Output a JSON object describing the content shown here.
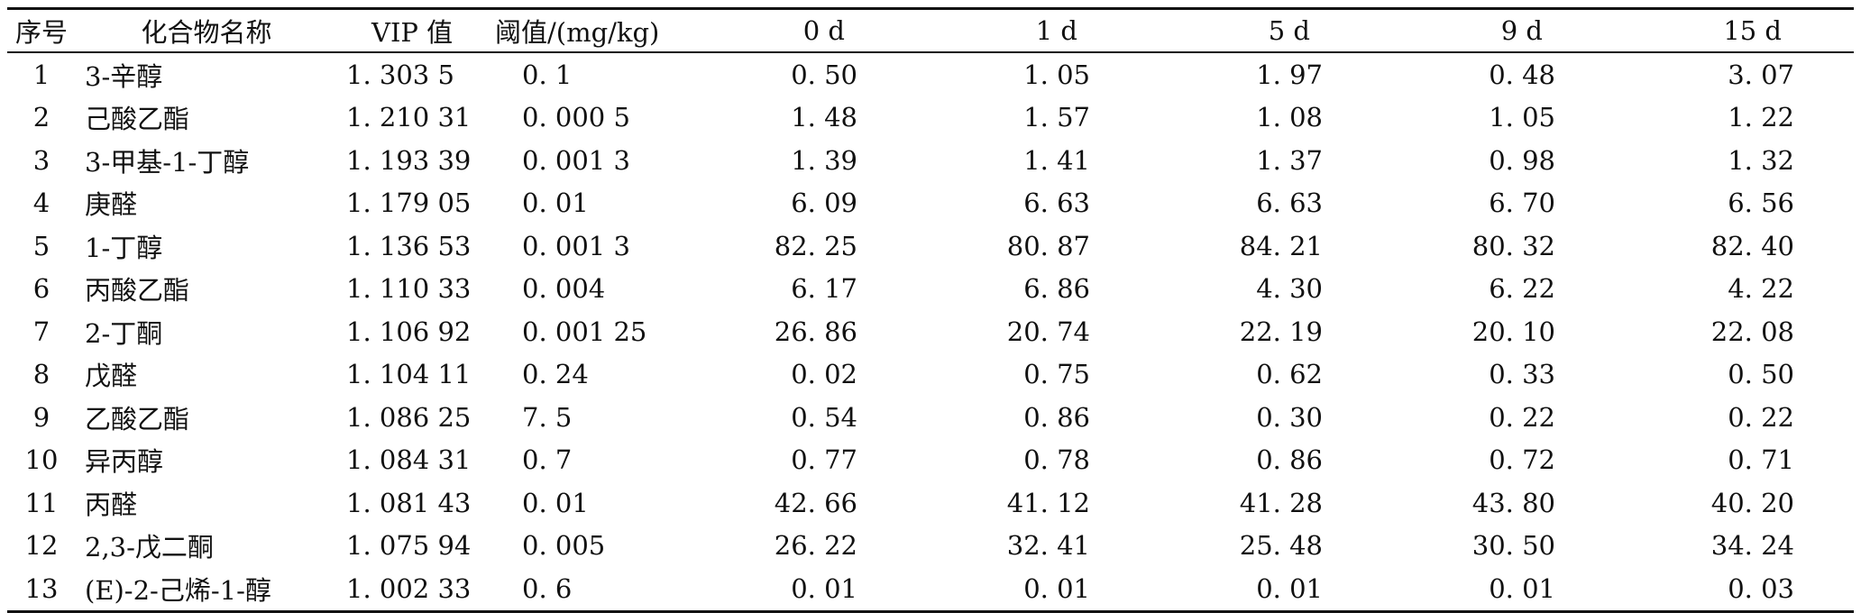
{
  "table": {
    "headers": [
      "序号",
      "化合物名称",
      "VIP 值",
      "阈值/(mg/kg)",
      "0 d",
      "1 d",
      "5 d",
      "9 d",
      "15 d"
    ],
    "rows": [
      [
        "1",
        "3-辛醇",
        "1. 303 5",
        "0. 1",
        "0. 50",
        "1. 05",
        "1. 97",
        "0. 48",
        "3. 07"
      ],
      [
        "2",
        "己酸乙酯",
        "1. 210 31",
        "0. 000 5",
        "1. 48",
        "1. 57",
        "1. 08",
        "1. 05",
        "1. 22"
      ],
      [
        "3",
        "3-甲基-1-丁醇",
        "1. 193 39",
        "0. 001 3",
        "1. 39",
        "1. 41",
        "1. 37",
        "0. 98",
        "1. 32"
      ],
      [
        "4",
        "庚醛",
        "1. 179 05",
        "0. 01",
        "6. 09",
        "6. 63",
        "6. 63",
        "6. 70",
        "6. 56"
      ],
      [
        "5",
        "1-丁醇",
        "1. 136 53",
        "0. 001 3",
        "82. 25",
        "80. 87",
        "84. 21",
        "80. 32",
        "82. 40"
      ],
      [
        "6",
        "丙酸乙酯",
        "1. 110 33",
        "0. 004",
        "6. 17",
        "6. 86",
        "4. 30",
        "6. 22",
        "4. 22"
      ],
      [
        "7",
        "2-丁酮",
        "1. 106 92",
        "0. 001 25",
        "26. 86",
        "20. 74",
        "22. 19",
        "20. 10",
        "22. 08"
      ],
      [
        "8",
        "戊醛",
        "1. 104 11",
        "0. 24",
        "0. 02",
        "0. 75",
        "0. 62",
        "0. 33",
        "0. 50"
      ],
      [
        "9",
        "乙酸乙酯",
        "1. 086 25",
        "7. 5",
        "0. 54",
        "0. 86",
        "0. 30",
        "0. 22",
        "0. 22"
      ],
      [
        "10",
        "异丙醇",
        "1. 084 31",
        "0. 7",
        "0. 77",
        "0. 78",
        "0. 86",
        "0. 72",
        "0. 71"
      ],
      [
        "11",
        "丙醛",
        "1. 081 43",
        "0. 01",
        "42. 66",
        "41. 12",
        "41. 28",
        "43. 80",
        "40. 20"
      ],
      [
        "12",
        "2,3-戊二酮",
        "1. 075 94",
        "0. 005",
        "26. 22",
        "32. 41",
        "25. 48",
        "30. 50",
        "34. 24"
      ],
      [
        "13",
        "(E)-2-己烯-1-醇",
        "1. 002 33",
        "0. 6",
        "0. 01",
        "0. 01",
        "0. 01",
        "0. 01",
        "0. 03"
      ]
    ]
  }
}
